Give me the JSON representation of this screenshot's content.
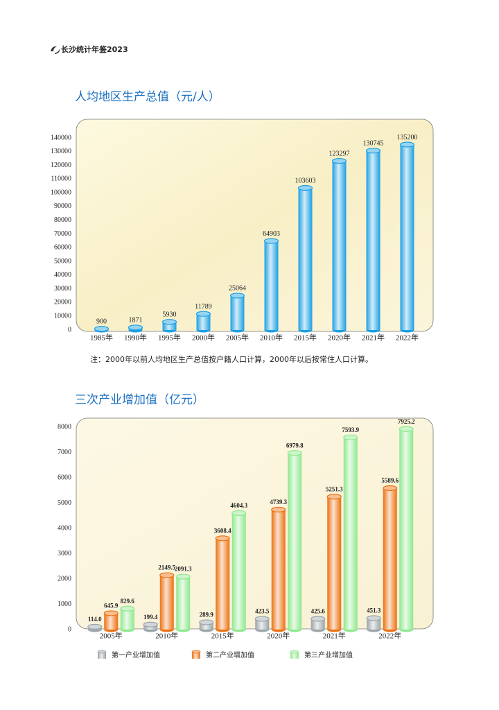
{
  "header": {
    "title": "长沙统计年鉴2023"
  },
  "chart_data": [
    {
      "type": "bar",
      "title": "人均地区生产总值（元/人）",
      "categories": [
        "1985年",
        "1990年",
        "1995年",
        "2000年",
        "2005年",
        "2010年",
        "2015年",
        "2020年",
        "2021年",
        "2022年"
      ],
      "values": [
        900,
        1871,
        5930,
        11789,
        25064,
        64903,
        103603,
        123297,
        130745,
        135200
      ],
      "color": "#1b9fe3",
      "ylim": [
        0,
        140000
      ],
      "yticks": [
        0,
        10000,
        20000,
        30000,
        40000,
        50000,
        60000,
        70000,
        80000,
        90000,
        100000,
        110000,
        120000,
        130000,
        140000
      ],
      "grid": false,
      "note": "注：2000年以前人均地区生产总值按户籍人口计算，2000年以后按常住人口计算。"
    },
    {
      "type": "bar",
      "title": "三次产业增加值（亿元）",
      "categories": [
        "2005年",
        "2010年",
        "2015年",
        "2020年",
        "2021年",
        "2022年"
      ],
      "series": [
        {
          "name": "第一产业增加值",
          "color": "#9aa3a8",
          "values": [
            114.0,
            199.4,
            289.9,
            423.5,
            425.6,
            451.3
          ],
          "value_labels": [
            "114.0",
            "199.4",
            "289.9",
            "423.5",
            "425.6",
            "451.3"
          ]
        },
        {
          "name": "第二产业增加值",
          "color": "#ec700e",
          "values": [
            645.9,
            2149.5,
            3608.4,
            4739.3,
            5251.3,
            5589.6
          ]
        },
        {
          "name": "第三产业增加值",
          "color": "#8ee88c",
          "values": [
            829.6,
            2091.3,
            4604.3,
            6979.8,
            7593.9,
            7925.2
          ]
        }
      ],
      "ylim": [
        0,
        8000
      ],
      "yticks": [
        0,
        1000,
        2000,
        3000,
        4000,
        5000,
        6000,
        7000,
        8000
      ],
      "grid": false,
      "legend": "bottom"
    }
  ]
}
